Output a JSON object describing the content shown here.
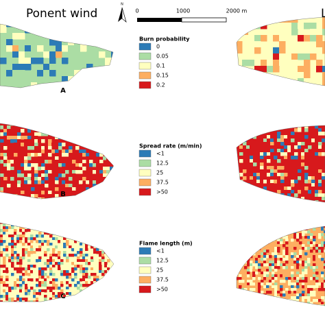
{
  "title": "Ponent wind",
  "right_title_fragment": "L",
  "north": "N",
  "scalebar": [
    "0",
    "1000",
    "2000 m"
  ],
  "panel_labels": [
    "A",
    "B",
    "C"
  ],
  "legends": [
    {
      "title": "Burn probability",
      "items": [
        {
          "label": "0",
          "color": "#2c7bb6"
        },
        {
          "label": "0.05",
          "color": "#abdda4"
        },
        {
          "label": "0.1",
          "color": "#ffffbf"
        },
        {
          "label": "0.15",
          "color": "#fdae61"
        },
        {
          "label": "0.2",
          "color": "#d7191c"
        }
      ]
    },
    {
      "title": "Spread rate (m/min)",
      "items": [
        {
          "label": "<1",
          "color": "#2c7bb6"
        },
        {
          "label": "12.5",
          "color": "#abdda4"
        },
        {
          "label": "25",
          "color": "#ffffbf"
        },
        {
          "label": "37.5",
          "color": "#fdae61"
        },
        {
          "label": ">50",
          "color": "#d7191c"
        }
      ]
    },
    {
      "title": "Flame length (m)",
      "items": [
        {
          "label": "<1",
          "color": "#2c7bb6"
        },
        {
          "label": "12.5",
          "color": "#abdda4"
        },
        {
          "label": "25",
          "color": "#ffffbf"
        },
        {
          "label": "37.5",
          "color": "#fdae61"
        },
        {
          "label": ">50",
          "color": "#d7191c"
        }
      ]
    }
  ]
}
